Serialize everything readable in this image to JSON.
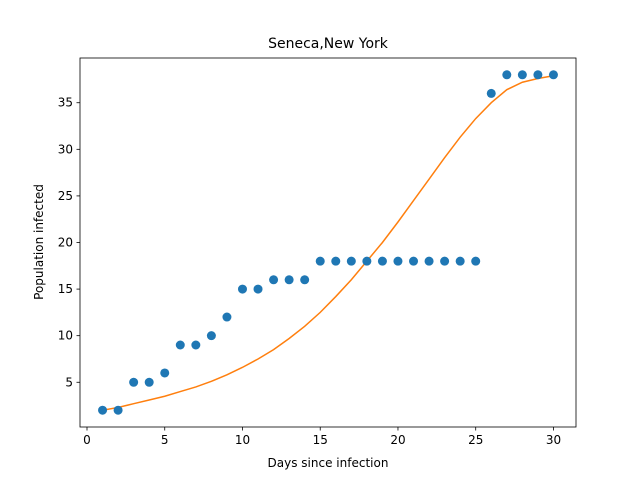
{
  "chart_data": {
    "type": "scatter",
    "title": "Seneca,New York",
    "xlabel": "Days since infection",
    "ylabel": "Population infected",
    "xlim": [
      -0.45,
      31.45
    ],
    "ylim": [
      0.2,
      39.8
    ],
    "xticks": [
      0,
      5,
      10,
      15,
      20,
      25,
      30
    ],
    "yticks": [
      5,
      10,
      15,
      20,
      25,
      30,
      35
    ],
    "grid": false,
    "legend": "none",
    "series": [
      {
        "kind": "scatter",
        "color": "#1f77b4",
        "x": [
          1,
          2,
          3,
          4,
          5,
          6,
          7,
          8,
          9,
          10,
          11,
          12,
          13,
          14,
          15,
          16,
          17,
          18,
          19,
          20,
          21,
          22,
          23,
          24,
          25,
          26,
          27,
          28,
          29,
          30
        ],
        "y": [
          2,
          2,
          5,
          5,
          6,
          9,
          9,
          10,
          12,
          15,
          15,
          16,
          16,
          16,
          18,
          18,
          18,
          18,
          18,
          18,
          18,
          18,
          18,
          18,
          18,
          36,
          38,
          38,
          38,
          38
        ]
      },
      {
        "kind": "line",
        "color": "#ff7f0e",
        "x": [
          1,
          2,
          3,
          4,
          5,
          6,
          7,
          8,
          9,
          10,
          11,
          12,
          13,
          14,
          15,
          16,
          17,
          18,
          19,
          20,
          21,
          22,
          23,
          24,
          25,
          26,
          27,
          28,
          29,
          30
        ],
        "y": [
          2.0,
          2.3,
          2.7,
          3.1,
          3.5,
          4.0,
          4.5,
          5.1,
          5.8,
          6.6,
          7.5,
          8.5,
          9.7,
          11.0,
          12.5,
          14.2,
          16.0,
          18.0,
          20.0,
          22.2,
          24.5,
          26.8,
          29.1,
          31.3,
          33.3,
          35.0,
          36.4,
          37.2,
          37.6,
          37.9
        ]
      }
    ]
  }
}
